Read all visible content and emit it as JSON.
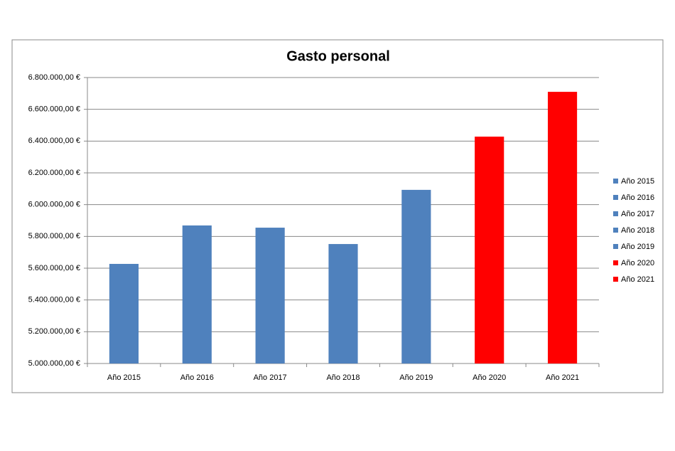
{
  "chart_data": {
    "type": "bar",
    "title": "Gasto personal",
    "categories": [
      "Año 2015",
      "Año 2016",
      "Año 2017",
      "Año 2018",
      "Año 2019",
      "Año 2020",
      "Año 2021"
    ],
    "values": [
      5627000,
      5869000,
      5855000,
      5752000,
      6093000,
      6428000,
      6710000
    ],
    "colors": [
      "#4f81bd",
      "#4f81bd",
      "#4f81bd",
      "#4f81bd",
      "#4f81bd",
      "#ff0000",
      "#ff0000"
    ],
    "ylim": [
      5000000,
      6800000
    ],
    "yticks": [
      {
        "value": 5000000,
        "label": "5.000.000,00 €"
      },
      {
        "value": 5200000,
        "label": "5.200.000,00 €"
      },
      {
        "value": 5400000,
        "label": "5.400.000,00 €"
      },
      {
        "value": 5600000,
        "label": "5.600.000,00 €"
      },
      {
        "value": 5800000,
        "label": "5.800.000,00 €"
      },
      {
        "value": 6000000,
        "label": "6.000.000,00 €"
      },
      {
        "value": 6200000,
        "label": "6.200.000,00 €"
      },
      {
        "value": 6400000,
        "label": "6.400.000,00 €"
      },
      {
        "value": 6600000,
        "label": "6.600.000,00 €"
      },
      {
        "value": 6800000,
        "label": "6.800.000,00 €"
      }
    ],
    "grid": true,
    "legend": "right"
  }
}
